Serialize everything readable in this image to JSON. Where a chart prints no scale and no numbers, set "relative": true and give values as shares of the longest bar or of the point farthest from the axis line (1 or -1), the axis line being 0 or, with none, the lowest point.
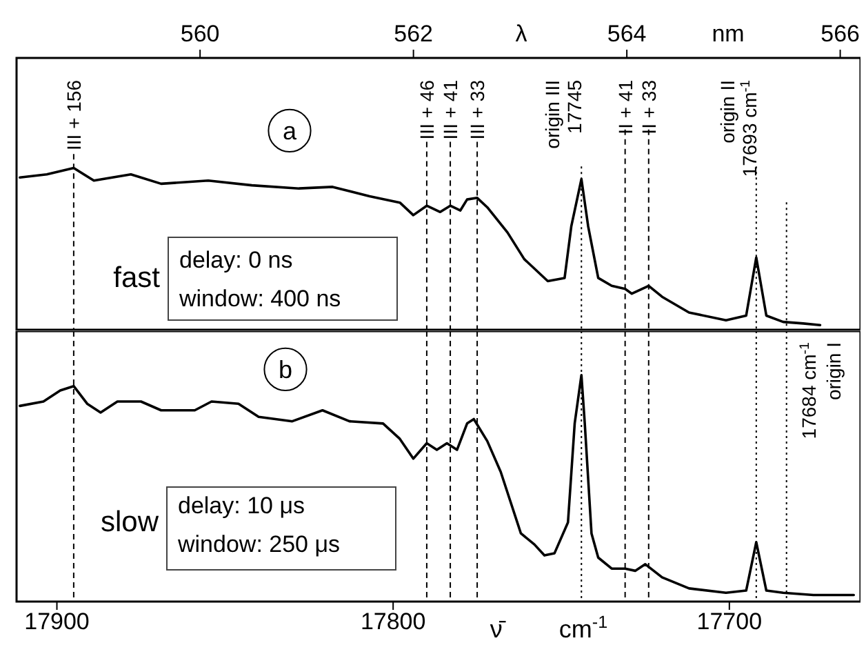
{
  "chart_data": [
    {
      "type": "line",
      "relative": true,
      "color": "#000000",
      "xlim": [
        17912,
        17661
      ],
      "x2lim": [
        558.28,
        566.19
      ],
      "x2ticks": [
        560,
        562,
        564,
        566
      ],
      "x2label": "λ",
      "tick_labels": "x2",
      "x": [
        17911,
        17903,
        17895,
        17889,
        17878,
        17869,
        17855,
        17842,
        17828,
        17818,
        17807,
        17798,
        17794,
        17790,
        17786,
        17783,
        17780,
        17778,
        17775,
        17772,
        17766,
        17761,
        17754,
        17749,
        17747,
        17744,
        17742,
        17739,
        17735,
        17731,
        17729,
        17724,
        17720,
        17712,
        17701,
        17695,
        17692,
        17689,
        17684,
        17678,
        17673
      ],
      "values": [
        0.94,
        0.96,
        1.0,
        0.92,
        0.96,
        0.9,
        0.92,
        0.89,
        0.87,
        0.88,
        0.82,
        0.78,
        0.7,
        0.76,
        0.72,
        0.76,
        0.73,
        0.8,
        0.81,
        0.75,
        0.59,
        0.42,
        0.28,
        0.3,
        0.63,
        0.93,
        0.63,
        0.3,
        0.25,
        0.23,
        0.2,
        0.25,
        0.18,
        0.08,
        0.03,
        0.06,
        0.43,
        0.06,
        0.02,
        0.01,
        0
      ],
      "ref_lines": [
        {
          "axis": "x",
          "value": 17895,
          "label": "III + 156",
          "line_style": "dashed"
        },
        {
          "axis": "x",
          "value": 17790,
          "label": "III + 46",
          "line_style": "dashed"
        },
        {
          "axis": "x",
          "value": 17783,
          "label": "III + 41",
          "line_style": "dashed"
        },
        {
          "axis": "x",
          "value": 17775,
          "label": "III + 33",
          "line_style": "dashed"
        },
        {
          "axis": "x",
          "value": 17744,
          "label": "origin III\n17745",
          "line_style": "dotted"
        },
        {
          "axis": "x",
          "value": 17731,
          "label": "II + 41",
          "line_style": "dashed"
        },
        {
          "axis": "x",
          "value": 17724,
          "label": "II + 33",
          "line_style": "dashed"
        },
        {
          "axis": "x",
          "value": 17692,
          "label": "origin II\n17693 cm$^{-1}$",
          "line_style": "dotted"
        },
        {
          "axis": "x",
          "value": 17683,
          "line_style": "dotted"
        }
      ],
      "annotations": [
        "a",
        "fast",
        "delay: 0 ns",
        "window: 400 ns",
        "nm"
      ]
    },
    {
      "type": "line",
      "relative": true,
      "color": "#000000",
      "xlim": [
        17912,
        17661
      ],
      "xticks": [
        17900,
        17800,
        17700
      ],
      "xlabel": "ν̄ cm$^{-1}$",
      "tick_labels": "x",
      "x": [
        17911,
        17904,
        17899,
        17895,
        17891,
        17887,
        17882,
        17875,
        17869,
        17859,
        17854,
        17846,
        17840,
        17830,
        17821,
        17813,
        17803,
        17798,
        17794,
        17790,
        17787,
        17784,
        17781,
        17778,
        17776,
        17772,
        17768,
        17762,
        17758,
        17755,
        17752,
        17748,
        17746,
        17744,
        17743,
        17741,
        17739,
        17735,
        17731,
        17728,
        17725,
        17720,
        17712,
        17701,
        17695,
        17692,
        17689,
        17684,
        17675,
        17663
      ],
      "values": [
        0.86,
        0.88,
        0.93,
        0.95,
        0.87,
        0.83,
        0.88,
        0.88,
        0.84,
        0.84,
        0.88,
        0.87,
        0.81,
        0.79,
        0.84,
        0.79,
        0.78,
        0.71,
        0.62,
        0.69,
        0.66,
        0.69,
        0.66,
        0.78,
        0.8,
        0.7,
        0.56,
        0.28,
        0.23,
        0.18,
        0.19,
        0.33,
        0.78,
        1.0,
        0.78,
        0.28,
        0.17,
        0.12,
        0.12,
        0.11,
        0.14,
        0.08,
        0.03,
        0.01,
        0.02,
        0.24,
        0.02,
        0.01,
        0,
        0
      ],
      "ref_lines": [
        {
          "axis": "x",
          "value": 17895,
          "line_style": "dashed"
        },
        {
          "axis": "x",
          "value": 17790,
          "line_style": "dashed"
        },
        {
          "axis": "x",
          "value": 17783,
          "line_style": "dashed"
        },
        {
          "axis": "x",
          "value": 17775,
          "line_style": "dashed"
        },
        {
          "axis": "x",
          "value": 17744,
          "line_style": "dotted"
        },
        {
          "axis": "x",
          "value": 17731,
          "line_style": "dashed"
        },
        {
          "axis": "x",
          "value": 17724,
          "line_style": "dashed"
        },
        {
          "axis": "x",
          "value": 17692,
          "line_style": "dotted"
        },
        {
          "axis": "x",
          "value": 17683,
          "label": "17684 cm$^{-1}$\norigin I",
          "line_style": "dotted"
        }
      ],
      "annotations": [
        "b",
        "slow",
        "delay: 10 μs",
        "window: 250 μs"
      ]
    }
  ]
}
